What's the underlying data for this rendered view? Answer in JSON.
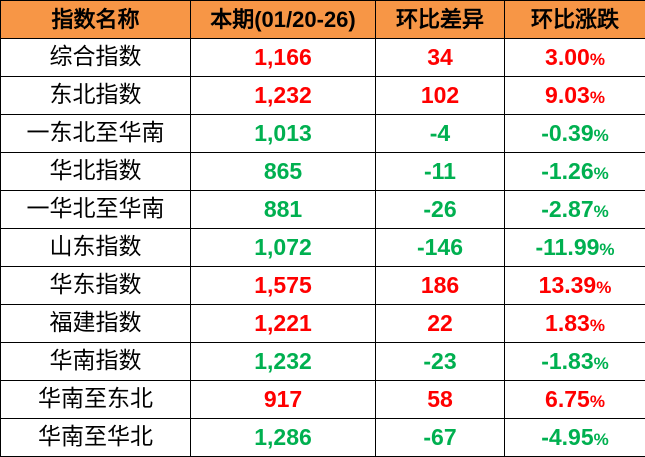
{
  "colors": {
    "header_bg": "#F79646",
    "up": "#FF0000",
    "down": "#00B050"
  },
  "headers": [
    "指数名称",
    "本期(01/20-26)",
    "环比差异",
    "环比涨跌"
  ],
  "rows": [
    {
      "name": "综合指数",
      "current": "1,166",
      "diff": "34",
      "change": "3.00",
      "pct": "%",
      "trend": "up"
    },
    {
      "name": "东北指数",
      "current": "1,232",
      "diff": "102",
      "change": "9.03",
      "pct": "%",
      "trend": "up"
    },
    {
      "name": "一东北至华南",
      "current": "1,013",
      "diff": "-4",
      "change": "-0.39",
      "pct": "%",
      "trend": "down"
    },
    {
      "name": "华北指数",
      "current": "865",
      "diff": "-11",
      "change": "-1.26",
      "pct": "%",
      "trend": "down"
    },
    {
      "name": "一华北至华南",
      "current": "881",
      "diff": "-26",
      "change": "-2.87",
      "pct": "%",
      "trend": "down"
    },
    {
      "name": "山东指数",
      "current": "1,072",
      "diff": "-146",
      "change": "-11.99",
      "pct": "%",
      "trend": "down"
    },
    {
      "name": "华东指数",
      "current": "1,575",
      "diff": "186",
      "change": "13.39",
      "pct": "%",
      "trend": "up"
    },
    {
      "name": "福建指数",
      "current": "1,221",
      "diff": "22",
      "change": "1.83",
      "pct": "%",
      "trend": "up"
    },
    {
      "name": "华南指数",
      "current": "1,232",
      "diff": "-23",
      "change": "-1.83",
      "pct": "%",
      "trend": "down"
    },
    {
      "name": "华南至东北",
      "current": "917",
      "diff": "58",
      "change": "6.75",
      "pct": "%",
      "trend": "up"
    },
    {
      "name": "华南至华北",
      "current": "1,286",
      "diff": "-67",
      "change": "-4.95",
      "pct": "%",
      "trend": "down"
    }
  ]
}
